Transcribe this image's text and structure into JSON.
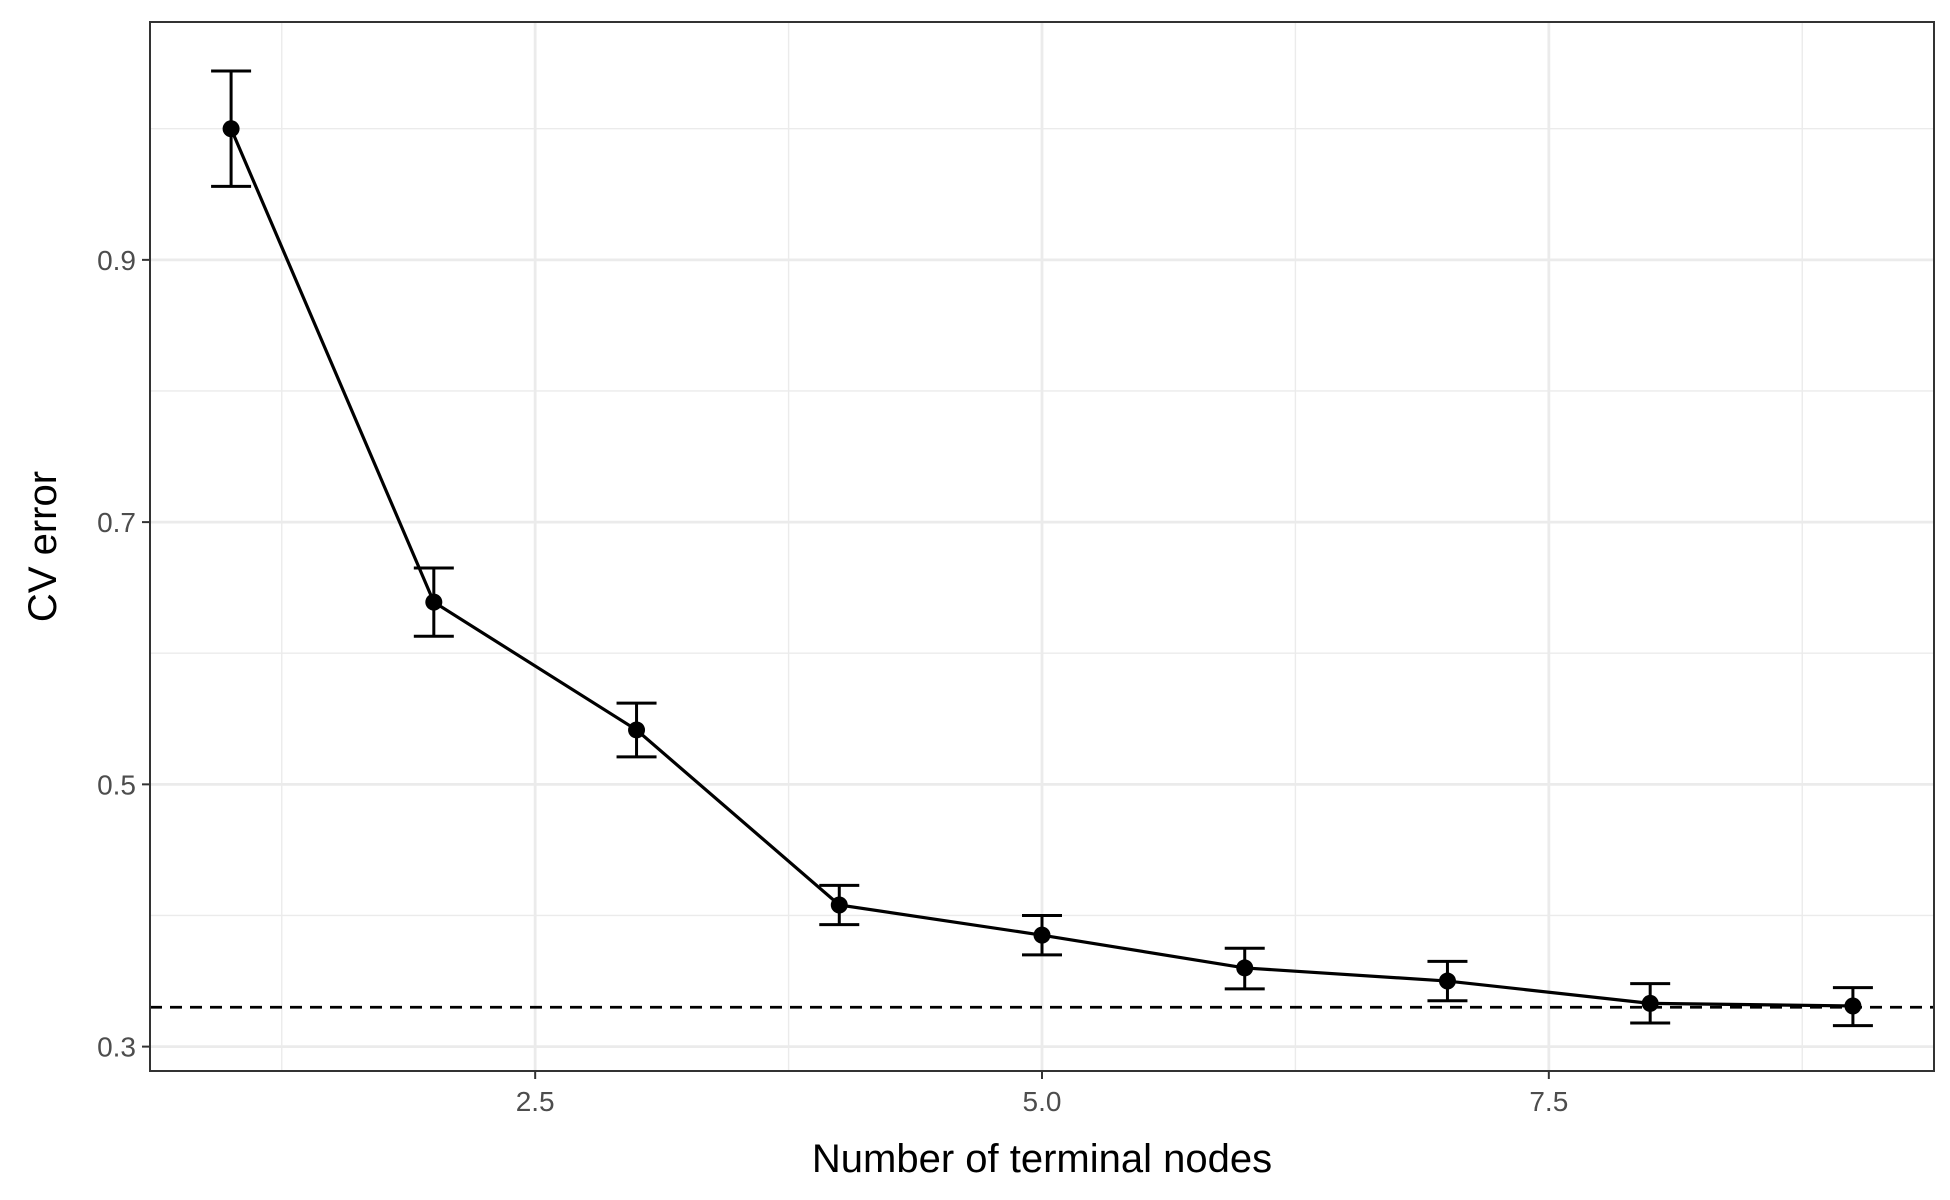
{
  "chart_data": {
    "type": "line",
    "title": "",
    "xlabel": "Number of terminal nodes",
    "ylabel": "CV error",
    "xlim": [
      0.6,
      9.4
    ],
    "ylim": [
      0.2814,
      1.0814
    ],
    "x_ticks": [
      {
        "value": 2.5,
        "label": "2.5"
      },
      {
        "value": 5.0,
        "label": "5.0"
      },
      {
        "value": 7.5,
        "label": "7.5"
      }
    ],
    "x_minor_ticks": [
      1.25,
      3.75,
      6.25,
      8.75
    ],
    "y_ticks": [
      {
        "value": 0.3,
        "label": "0.3"
      },
      {
        "value": 0.5,
        "label": "0.5"
      },
      {
        "value": 0.7,
        "label": "0.7"
      },
      {
        "value": 0.9,
        "label": "0.9"
      }
    ],
    "y_minor_ticks": [
      0.4,
      0.6,
      0.8,
      1.0
    ],
    "grid": true,
    "legend": "none",
    "reference_line": {
      "y": 0.33,
      "style": "dashed"
    },
    "series": [
      {
        "x": [
          1,
          2,
          3,
          4,
          5,
          6,
          7,
          8,
          9
        ],
        "y": [
          1.0,
          0.639,
          0.5415,
          0.408,
          0.385,
          0.36,
          0.35,
          0.333,
          0.331
        ],
        "ymin": [
          0.956,
          0.613,
          0.521,
          0.393,
          0.37,
          0.344,
          0.335,
          0.318,
          0.316
        ],
        "ymax": [
          1.044,
          0.665,
          0.562,
          0.423,
          0.4,
          0.375,
          0.365,
          0.348,
          0.345
        ]
      }
    ],
    "colors": {
      "line": "#000000",
      "grid": "#ebebeb",
      "panel_border": "#333333",
      "tick_text": "#4d4d4d"
    }
  }
}
